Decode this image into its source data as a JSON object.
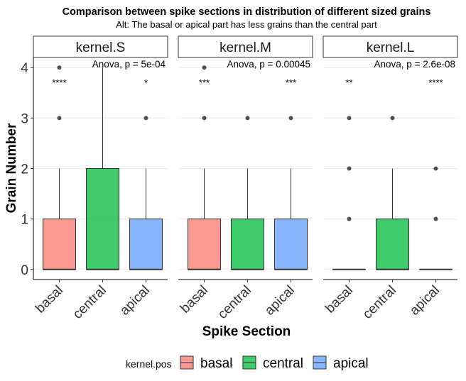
{
  "chart_data": {
    "type": "box",
    "title": "Comparison between spike sections in distribution of different sized grains",
    "subtitle": "Alt: The basal or apical part has less grains than the central part",
    "xlabel": "Spike Section",
    "ylabel": "Grain Number",
    "ylim": [
      -0.2,
      4.2
    ],
    "yticks": [
      0,
      1,
      2,
      3,
      4
    ],
    "categories": [
      "basal",
      "central",
      "apical"
    ],
    "legend": {
      "title": "kernel.pos",
      "position": "bottom",
      "entries": [
        "basal",
        "central",
        "apical"
      ]
    },
    "colors": {
      "basal": "#f8766d",
      "central": "#00ba38",
      "apical": "#619cff"
    },
    "grid": "horizontal-major",
    "panels": [
      {
        "label": "kernel.S",
        "anova": "Anova, p = 5e-04",
        "boxes": [
          {
            "category": "basal",
            "q1": 0,
            "median": 0,
            "q3": 1,
            "whisker_low": 0,
            "whisker_high": 2,
            "outliers": [
              3,
              4
            ],
            "significance": "****"
          },
          {
            "category": "central",
            "q1": 0,
            "median": 0,
            "q3": 2,
            "whisker_low": 0,
            "whisker_high": 4,
            "outliers": [],
            "significance": ""
          },
          {
            "category": "apical",
            "q1": 0,
            "median": 0,
            "q3": 1,
            "whisker_low": 0,
            "whisker_high": 2,
            "outliers": [
              3
            ],
            "significance": "*"
          }
        ]
      },
      {
        "label": "kernel.M",
        "anova": "Anova, p = 0.00045",
        "boxes": [
          {
            "category": "basal",
            "q1": 0,
            "median": 0,
            "q3": 1,
            "whisker_low": 0,
            "whisker_high": 2,
            "outliers": [
              3,
              4
            ],
            "significance": "***"
          },
          {
            "category": "central",
            "q1": 0,
            "median": 0,
            "q3": 1,
            "whisker_low": 0,
            "whisker_high": 2,
            "outliers": [
              3
            ],
            "significance": ""
          },
          {
            "category": "apical",
            "q1": 0,
            "median": 0,
            "q3": 1,
            "whisker_low": 0,
            "whisker_high": 2,
            "outliers": [
              3
            ],
            "significance": "***"
          }
        ]
      },
      {
        "label": "kernel.L",
        "anova": "Anova, p = 2.6e-08",
        "boxes": [
          {
            "category": "basal",
            "q1": 0,
            "median": 0,
            "q3": 0,
            "whisker_low": 0,
            "whisker_high": 0,
            "outliers": [
              1,
              2,
              3
            ],
            "significance": "**"
          },
          {
            "category": "central",
            "q1": 0,
            "median": 0,
            "q3": 1,
            "whisker_low": 0,
            "whisker_high": 2,
            "outliers": [
              3
            ],
            "significance": ""
          },
          {
            "category": "apical",
            "q1": 0,
            "median": 0,
            "q3": 0,
            "whisker_low": 0,
            "whisker_high": 0,
            "outliers": [
              1,
              2
            ],
            "significance": "****"
          }
        ]
      }
    ]
  }
}
